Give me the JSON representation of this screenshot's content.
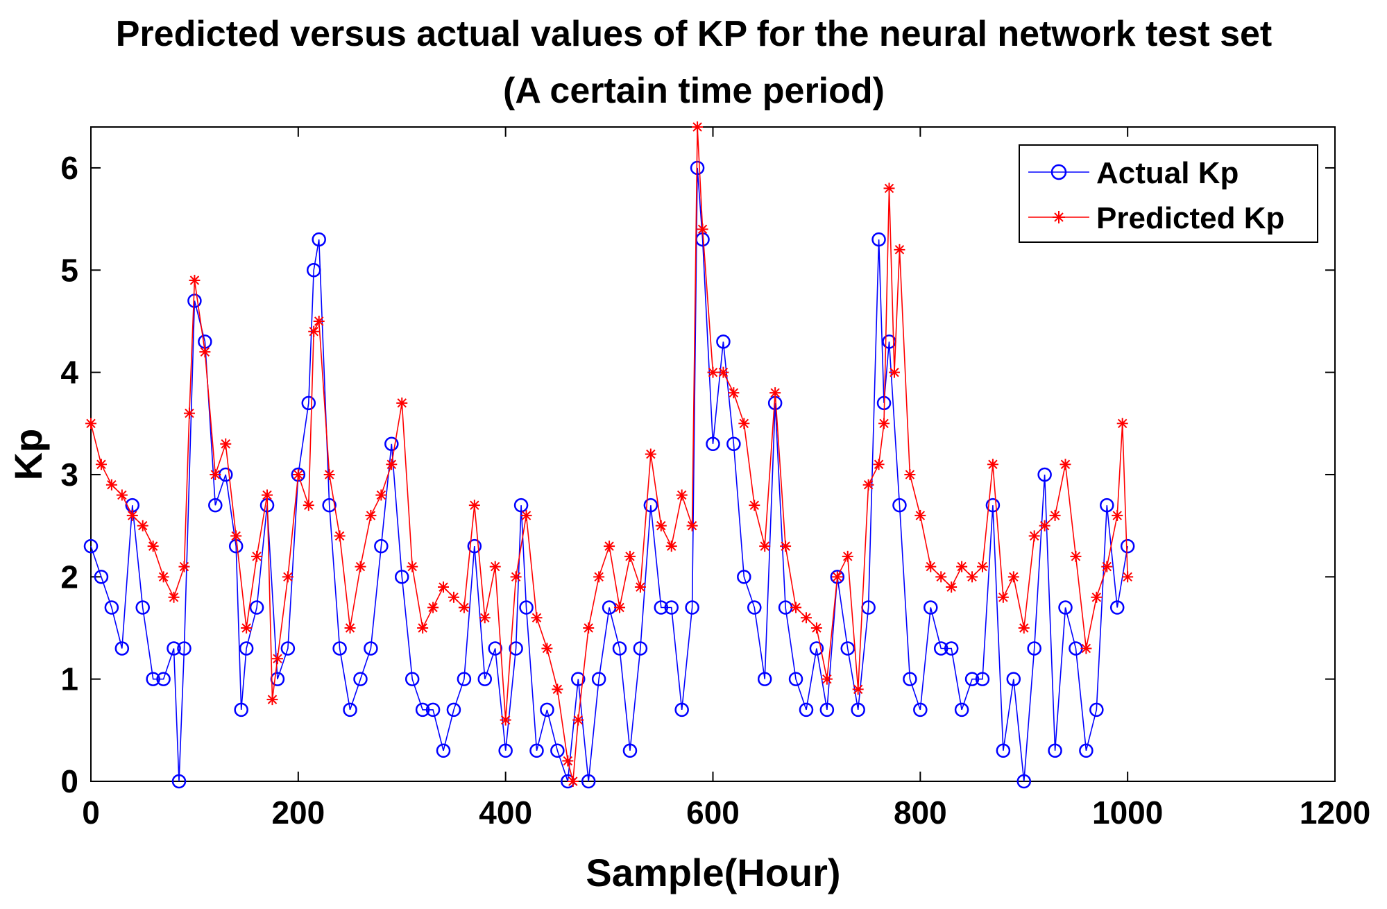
{
  "chart_data": {
    "type": "line",
    "title": [
      "Predicted versus actual values of KP for the neural network test set",
      "(A certain time period)"
    ],
    "xlabel": "Sample(Hour)",
    "ylabel": "Kp",
    "xlim": [
      0,
      1200
    ],
    "ylim": [
      0,
      6.4
    ],
    "xticks": [
      0,
      200,
      400,
      600,
      800,
      1000,
      1200
    ],
    "yticks": [
      0,
      1,
      2,
      3,
      4,
      5,
      6
    ],
    "grid": false,
    "legend_position": "top-right",
    "colors": {
      "actual": "#0000ff",
      "predicted": "#ff0000",
      "axes": "#000000"
    },
    "series": [
      {
        "name": "Actual Kp",
        "marker": "circle",
        "color": "#0000ff",
        "x": [
          0,
          10,
          20,
          30,
          40,
          50,
          60,
          70,
          80,
          85,
          90,
          100,
          110,
          120,
          130,
          140,
          145,
          150,
          160,
          170,
          180,
          190,
          200,
          210,
          215,
          220,
          230,
          240,
          250,
          260,
          270,
          280,
          290,
          300,
          310,
          320,
          330,
          340,
          350,
          360,
          370,
          380,
          390,
          400,
          410,
          415,
          420,
          430,
          440,
          450,
          460,
          470,
          480,
          490,
          500,
          510,
          520,
          530,
          540,
          550,
          560,
          570,
          580,
          585,
          590,
          600,
          610,
          620,
          630,
          640,
          650,
          660,
          670,
          680,
          690,
          700,
          710,
          720,
          730,
          740,
          750,
          760,
          765,
          770,
          780,
          790,
          800,
          810,
          820,
          830,
          840,
          850,
          860,
          870,
          880,
          890,
          900,
          910,
          920,
          930,
          940,
          950,
          960,
          970,
          980,
          990,
          1000
        ],
        "values": [
          2.3,
          2.0,
          1.7,
          1.3,
          2.7,
          1.7,
          1.0,
          1.0,
          1.3,
          0.0,
          1.3,
          4.7,
          4.3,
          2.7,
          3.0,
          2.3,
          0.7,
          1.3,
          1.7,
          2.7,
          1.0,
          1.3,
          3.0,
          3.7,
          5.0,
          5.3,
          2.7,
          1.3,
          0.7,
          1.0,
          1.3,
          2.3,
          3.3,
          2.0,
          1.0,
          0.7,
          0.7,
          0.3,
          0.7,
          1.0,
          2.3,
          1.0,
          1.3,
          0.3,
          1.3,
          2.7,
          1.7,
          0.3,
          0.7,
          0.3,
          0.0,
          1.0,
          0.0,
          1.0,
          1.7,
          1.3,
          0.3,
          1.3,
          2.7,
          1.7,
          1.7,
          0.7,
          1.7,
          6.0,
          5.3,
          3.3,
          4.3,
          3.3,
          2.0,
          1.7,
          1.0,
          3.7,
          1.7,
          1.0,
          0.7,
          1.3,
          0.7,
          2.0,
          1.3,
          0.7,
          1.7,
          5.3,
          3.7,
          4.3,
          2.7,
          1.0,
          0.7,
          1.7,
          1.3,
          1.3,
          0.7,
          1.0,
          1.0,
          2.7,
          0.3,
          1.0,
          0.0,
          1.3,
          3.0,
          0.3,
          1.7,
          1.3,
          0.3,
          0.7,
          2.7,
          1.7,
          2.3
        ]
      },
      {
        "name": "Predicted Kp",
        "marker": "asterisk",
        "color": "#ff0000",
        "x": [
          0,
          10,
          20,
          30,
          40,
          50,
          60,
          70,
          80,
          90,
          95,
          100,
          110,
          120,
          130,
          140,
          150,
          160,
          170,
          175,
          180,
          190,
          200,
          210,
          215,
          220,
          230,
          240,
          250,
          260,
          270,
          280,
          290,
          300,
          310,
          320,
          330,
          340,
          350,
          360,
          370,
          380,
          390,
          400,
          410,
          420,
          430,
          440,
          450,
          460,
          465,
          470,
          480,
          490,
          500,
          510,
          520,
          530,
          540,
          550,
          560,
          570,
          580,
          585,
          590,
          600,
          610,
          620,
          630,
          640,
          650,
          660,
          670,
          680,
          690,
          700,
          710,
          720,
          730,
          740,
          750,
          760,
          765,
          770,
          775,
          780,
          790,
          800,
          810,
          820,
          830,
          840,
          850,
          860,
          870,
          880,
          890,
          900,
          910,
          920,
          930,
          940,
          950,
          960,
          970,
          980,
          990,
          995,
          1000
        ],
        "values": [
          3.5,
          3.1,
          2.9,
          2.8,
          2.6,
          2.5,
          2.3,
          2.0,
          1.8,
          2.1,
          3.6,
          4.9,
          4.2,
          3.0,
          3.3,
          2.4,
          1.5,
          2.2,
          2.8,
          0.8,
          1.2,
          2.0,
          3.0,
          2.7,
          4.4,
          4.5,
          3.0,
          2.4,
          1.5,
          2.1,
          2.6,
          2.8,
          3.1,
          3.7,
          2.1,
          1.5,
          1.7,
          1.9,
          1.8,
          1.7,
          2.7,
          1.6,
          2.1,
          0.6,
          2.0,
          2.6,
          1.6,
          1.3,
          0.9,
          0.2,
          0.0,
          0.6,
          1.5,
          2.0,
          2.3,
          1.7,
          2.2,
          1.9,
          3.2,
          2.5,
          2.3,
          2.8,
          2.5,
          6.4,
          5.4,
          4.0,
          4.0,
          3.8,
          3.5,
          2.7,
          2.3,
          3.8,
          2.3,
          1.7,
          1.6,
          1.5,
          1.0,
          2.0,
          2.2,
          0.9,
          2.9,
          3.1,
          3.5,
          5.8,
          4.0,
          5.2,
          3.0,
          2.6,
          2.1,
          2.0,
          1.9,
          2.1,
          2.0,
          2.1,
          3.1,
          1.8,
          2.0,
          1.5,
          2.4,
          2.5,
          2.6,
          3.1,
          2.2,
          1.3,
          1.8,
          2.1,
          2.6,
          3.5,
          2.0
        ]
      }
    ]
  }
}
